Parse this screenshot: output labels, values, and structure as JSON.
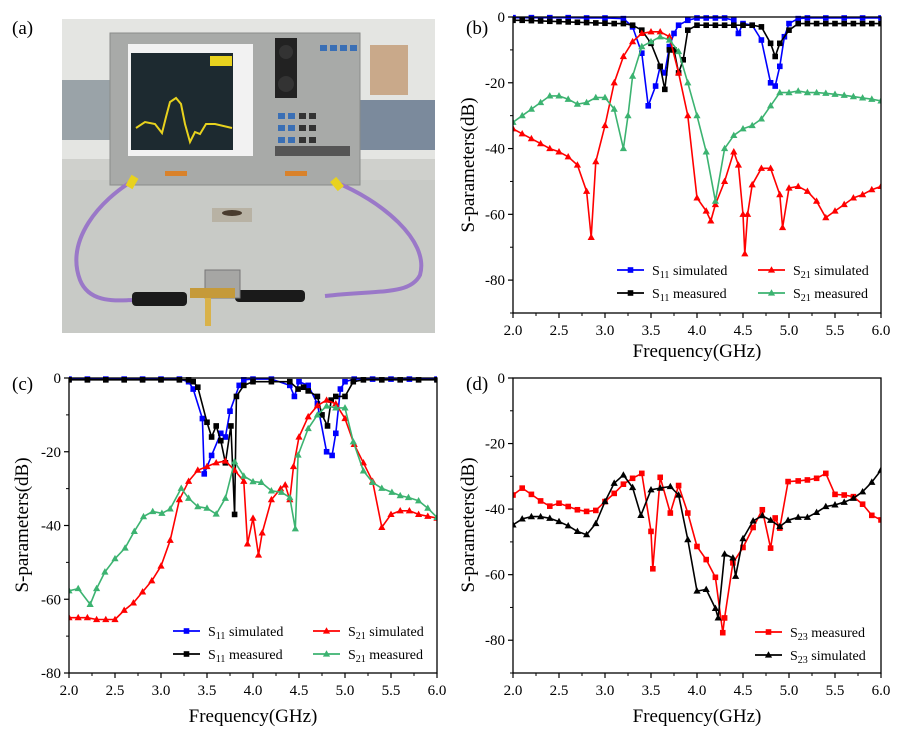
{
  "figure": {
    "panel_labels": [
      "(a)",
      "(b)",
      "(c)",
      "(d)"
    ]
  },
  "chart_data": [
    {
      "panel": "(b)",
      "type": "line",
      "xlabel": "Frequency(GHz)",
      "ylabel": "S-parameters(dB)",
      "xlim": [
        2.0,
        6.0
      ],
      "ylim": [
        -90,
        0
      ],
      "xticks": [
        "2.0",
        "2.5",
        "3.0",
        "3.5",
        "4.0",
        "4.5",
        "5.0",
        "5.5",
        "6.0"
      ],
      "yticks": [
        0,
        -20,
        -40,
        -60,
        -80
      ],
      "grid": false,
      "legend": "bottom-right",
      "series": [
        {
          "name": "S11 simulated",
          "color": "#0000ff",
          "marker": "square",
          "x": [
            2.0,
            2.2,
            2.4,
            2.6,
            2.8,
            3.0,
            3.2,
            3.3,
            3.4,
            3.47,
            3.55,
            3.6,
            3.65,
            3.7,
            3.75,
            3.8,
            3.9,
            4.0,
            4.1,
            4.2,
            4.3,
            4.4,
            4.45,
            4.5,
            4.6,
            4.7,
            4.8,
            4.85,
            4.9,
            4.95,
            5.0,
            5.1,
            5.2,
            5.4,
            5.6,
            5.8,
            6.0
          ],
          "y": [
            -0.2,
            -0.2,
            -0.2,
            -0.2,
            -0.3,
            -0.3,
            -0.5,
            -3,
            -11,
            -27,
            -21,
            -15,
            -17,
            -9,
            -5,
            -2.5,
            -1,
            -0.3,
            -0.3,
            -0.3,
            -0.3,
            -1,
            -5,
            -2,
            -2.5,
            -7,
            -20,
            -21,
            -15,
            -6,
            -2,
            -0.5,
            -0.3,
            -0.3,
            -0.3,
            -0.3,
            -0.3
          ]
        },
        {
          "name": "S11 measured",
          "color": "#000000",
          "marker": "square",
          "x": [
            2.0,
            2.1,
            2.2,
            2.3,
            2.4,
            2.5,
            2.6,
            2.7,
            2.8,
            2.9,
            3.0,
            3.1,
            3.2,
            3.3,
            3.4,
            3.5,
            3.6,
            3.65,
            3.7,
            3.75,
            3.8,
            3.85,
            3.9,
            4.0,
            4.1,
            4.2,
            4.3,
            4.4,
            4.5,
            4.6,
            4.7,
            4.8,
            4.85,
            4.9,
            5.0,
            5.1,
            5.2,
            5.3,
            5.4,
            5.5,
            5.6,
            5.7,
            5.8,
            5.9,
            6.0
          ],
          "y": [
            -1,
            -1,
            -1.1,
            -1.2,
            -1.3,
            -1.4,
            -1.5,
            -1.6,
            -1.7,
            -1.8,
            -1.9,
            -2,
            -2,
            -2.5,
            -4,
            -8,
            -15,
            -22,
            -10,
            -10,
            -17,
            -13,
            -4,
            -2.5,
            -2.5,
            -2.5,
            -2.5,
            -2.5,
            -2.5,
            -2.5,
            -3,
            -8,
            -12,
            -8,
            -4,
            -2,
            -2,
            -2,
            -2,
            -2,
            -2,
            -2,
            -2,
            -2,
            -2
          ]
        },
        {
          "name": "S21 simulated",
          "color": "#ff0000",
          "marker": "triangle",
          "x": [
            2.0,
            2.1,
            2.2,
            2.3,
            2.4,
            2.5,
            2.6,
            2.7,
            2.8,
            2.85,
            2.9,
            3.0,
            3.1,
            3.2,
            3.3,
            3.4,
            3.5,
            3.6,
            3.7,
            3.8,
            3.9,
            4.0,
            4.1,
            4.15,
            4.2,
            4.3,
            4.4,
            4.45,
            4.5,
            4.52,
            4.55,
            4.6,
            4.7,
            4.8,
            4.9,
            4.93,
            5.0,
            5.1,
            5.2,
            5.3,
            5.4,
            5.5,
            5.6,
            5.7,
            5.8,
            5.9,
            6.0
          ],
          "y": [
            -34,
            -35.5,
            -37,
            -38.5,
            -40,
            -41,
            -42.5,
            -45,
            -53,
            -67,
            -44,
            -33,
            -20,
            -12,
            -7.5,
            -5,
            -4.5,
            -4.5,
            -6,
            -17,
            -30,
            -55,
            -59,
            -62,
            -57,
            -50,
            -41,
            -45,
            -60,
            -72,
            -60,
            -51,
            -46,
            -46,
            -54,
            -64,
            -52,
            -51.5,
            -53,
            -56,
            -61,
            -59,
            -57,
            -55,
            -54,
            -52.5,
            -51.5
          ]
        },
        {
          "name": "S21 measured",
          "color": "#3cb371",
          "marker": "triangle",
          "x": [
            2.0,
            2.1,
            2.2,
            2.3,
            2.4,
            2.5,
            2.6,
            2.7,
            2.8,
            2.9,
            3.0,
            3.1,
            3.2,
            3.25,
            3.3,
            3.4,
            3.5,
            3.6,
            3.7,
            3.8,
            3.9,
            4.0,
            4.1,
            4.2,
            4.3,
            4.4,
            4.5,
            4.6,
            4.7,
            4.8,
            4.9,
            5.0,
            5.1,
            5.2,
            5.3,
            5.4,
            5.5,
            5.6,
            5.7,
            5.8,
            5.9,
            6.0
          ],
          "y": [
            -32,
            -30,
            -28,
            -26,
            -24,
            -24,
            -25,
            -26.5,
            -26,
            -24.5,
            -24.5,
            -28,
            -40,
            -30,
            -18,
            -9,
            -7.5,
            -6,
            -7,
            -10.5,
            -20,
            -30,
            -41,
            -56,
            -40,
            -36,
            -34,
            -33,
            -31,
            -27,
            -23,
            -23,
            -22.5,
            -23,
            -23,
            -23.2,
            -23.5,
            -23.8,
            -24.2,
            -24.6,
            -25,
            -25.5
          ]
        }
      ]
    },
    {
      "panel": "(c)",
      "type": "line",
      "xlabel": "Frequency(GHz)",
      "ylabel": "S-parameters(dB)",
      "xlim": [
        2.0,
        6.0
      ],
      "ylim": [
        -80,
        0
      ],
      "xticks": [
        "2.0",
        "2.5",
        "3.0",
        "3.5",
        "4.0",
        "4.5",
        "5.0",
        "5.5",
        "6.0"
      ],
      "yticks": [
        0,
        -20,
        -40,
        -60,
        -80
      ],
      "grid": false,
      "legend": "bottom-right",
      "series": [
        {
          "name": "S11 simulated",
          "color": "#0000ff",
          "marker": "square",
          "x": [
            2.0,
            2.2,
            2.4,
            2.6,
            2.8,
            3.0,
            3.2,
            3.3,
            3.35,
            3.45,
            3.47,
            3.55,
            3.65,
            3.7,
            3.75,
            3.85,
            3.9,
            4.0,
            4.2,
            4.4,
            4.45,
            4.5,
            4.6,
            4.7,
            4.8,
            4.86,
            4.9,
            4.95,
            5.0,
            5.1,
            5.3,
            5.5,
            5.7,
            6.0
          ],
          "y": [
            -0.3,
            -0.3,
            -0.3,
            -0.3,
            -0.3,
            -0.3,
            -0.3,
            -1,
            -3,
            -11,
            -26,
            -21,
            -15,
            -16,
            -9,
            -2,
            -0.5,
            -0.3,
            -0.3,
            -2,
            -5,
            -1,
            -2,
            -7,
            -20,
            -21,
            -15,
            -3,
            -1,
            -0.3,
            -0.3,
            -0.3,
            -0.3,
            -0.3
          ]
        },
        {
          "name": "S11 measured",
          "color": "#000000",
          "marker": "square",
          "x": [
            2.0,
            2.2,
            2.4,
            2.6,
            2.8,
            3.0,
            3.2,
            3.3,
            3.35,
            3.4,
            3.5,
            3.55,
            3.6,
            3.65,
            3.7,
            3.76,
            3.8,
            3.82,
            3.9,
            4.0,
            4.2,
            4.4,
            4.49,
            4.55,
            4.6,
            4.7,
            4.75,
            4.81,
            4.85,
            4.9,
            5.0,
            5.09,
            5.2,
            5.4,
            5.6,
            5.8,
            6.0
          ],
          "y": [
            -0.5,
            -0.5,
            -0.5,
            -0.5,
            -0.5,
            -0.5,
            -0.5,
            -0.5,
            -1,
            -2.5,
            -12,
            -16,
            -13,
            -17,
            -23,
            -13,
            -37,
            -5,
            -2,
            -1,
            -1,
            -1,
            -3,
            -2.5,
            -3.5,
            -5,
            -10,
            -13,
            -6,
            -5,
            -5,
            -1,
            -0.5,
            -0.5,
            -0.5,
            -0.5,
            -0.5
          ]
        },
        {
          "name": "S21 simulated",
          "color": "#ff0000",
          "marker": "triangle",
          "x": [
            2.0,
            2.1,
            2.2,
            2.3,
            2.4,
            2.5,
            2.6,
            2.7,
            2.8,
            2.9,
            3.0,
            3.1,
            3.2,
            3.3,
            3.4,
            3.5,
            3.6,
            3.7,
            3.8,
            3.9,
            3.94,
            4.0,
            4.06,
            4.1,
            4.2,
            4.3,
            4.35,
            4.4,
            4.44,
            4.5,
            4.6,
            4.7,
            4.8,
            4.9,
            5.0,
            5.1,
            5.2,
            5.3,
            5.4,
            5.5,
            5.6,
            5.7,
            5.8,
            5.9,
            6.0
          ],
          "y": [
            -65,
            -65,
            -65,
            -65.5,
            -65.5,
            -65.5,
            -63,
            -61,
            -58,
            -55,
            -51,
            -44,
            -33,
            -28,
            -25,
            -24,
            -23,
            -22.5,
            -25,
            -28,
            -45,
            -38,
            -48,
            -42,
            -33,
            -30,
            -29,
            -33,
            -24,
            -16,
            -10.5,
            -7.5,
            -6,
            -7,
            -11,
            -18,
            -23,
            -28,
            -40.5,
            -37,
            -36,
            -36,
            -37,
            -37.5,
            -38
          ]
        },
        {
          "name": "S21 measured",
          "color": "#3cb371",
          "marker": "triangle",
          "x": [
            2.0,
            2.1,
            2.23,
            2.3,
            2.39,
            2.5,
            2.61,
            2.71,
            2.81,
            2.91,
            3.01,
            3.1,
            3.22,
            3.3,
            3.4,
            3.5,
            3.6,
            3.7,
            3.8,
            3.9,
            4.0,
            4.09,
            4.2,
            4.31,
            4.4,
            4.46,
            4.49,
            4.6,
            4.7,
            4.8,
            4.9,
            5.0,
            5.09,
            5.2,
            5.3,
            5.4,
            5.51,
            5.6,
            5.69,
            5.8,
            5.9,
            6.0
          ],
          "y": [
            -57.7,
            -57.1,
            -61.4,
            -57.1,
            -52.6,
            -49,
            -46.1,
            -41.6,
            -37.6,
            -36.2,
            -36.7,
            -35.5,
            -29.9,
            -32.6,
            -34.9,
            -35.3,
            -36.9,
            -32.6,
            -22.7,
            -26.6,
            -28.1,
            -28.3,
            -30.6,
            -31,
            -32.4,
            -40.9,
            -20.9,
            -13.7,
            -10,
            -7.6,
            -8.1,
            -8.1,
            -17.3,
            -25.2,
            -28.3,
            -29.9,
            -31,
            -31.9,
            -32.4,
            -33.3,
            -35.3,
            -37.8
          ]
        }
      ]
    },
    {
      "panel": "(d)",
      "type": "line",
      "xlabel": "Frequency(GHz)",
      "ylabel": "S-parameters(dB)",
      "xlim": [
        2.0,
        6.0
      ],
      "ylim": [
        -90,
        0
      ],
      "xticks": [
        "2.0",
        "2.5",
        "3.0",
        "3.5",
        "4.0",
        "4.5",
        "5.0",
        "5.5",
        "6.0"
      ],
      "yticks": [
        0,
        -20,
        -40,
        -60,
        -80
      ],
      "grid": false,
      "legend": "bottom-right",
      "series": [
        {
          "name": "S23 measured",
          "color": "#ff0000",
          "marker": "square",
          "x": [
            2.0,
            2.1,
            2.2,
            2.3,
            2.4,
            2.5,
            2.6,
            2.7,
            2.8,
            2.9,
            3.0,
            3.1,
            3.2,
            3.3,
            3.4,
            3.5,
            3.52,
            3.6,
            3.71,
            3.8,
            3.9,
            4.0,
            4.1,
            4.2,
            4.28,
            4.3,
            4.39,
            4.5,
            4.61,
            4.71,
            4.8,
            4.85,
            4.9,
            4.99,
            5.1,
            5.2,
            5.3,
            5.4,
            5.5,
            5.6,
            5.7,
            5.8,
            5.9,
            6.0
          ],
          "y": [
            -35.7,
            -33.6,
            -35.5,
            -37.5,
            -39.1,
            -38.2,
            -39.2,
            -40.2,
            -40.7,
            -40.4,
            -37.7,
            -35.2,
            -32.4,
            -30.6,
            -29.1,
            -46.8,
            -58.2,
            -30.3,
            -41.2,
            -32.8,
            -41.2,
            -51.4,
            -55.4,
            -60.8,
            -77.7,
            -73.2,
            -56.4,
            -51.7,
            -45.6,
            -40.2,
            -51.9,
            -42.7,
            -45.8,
            -31.6,
            -31.4,
            -31.1,
            -30.6,
            -29.1,
            -35.5,
            -35.7,
            -36.2,
            -38.5,
            -41.9,
            -43.3
          ]
        },
        {
          "name": "S23 simulated",
          "color": "#000000",
          "marker": "triangle",
          "x": [
            2.0,
            2.1,
            2.2,
            2.3,
            2.4,
            2.5,
            2.6,
            2.7,
            2.8,
            2.9,
            3.0,
            3.1,
            3.2,
            3.3,
            3.39,
            3.5,
            3.6,
            3.71,
            3.8,
            3.9,
            4.0,
            4.1,
            4.2,
            4.23,
            4.3,
            4.39,
            4.42,
            4.5,
            4.61,
            4.71,
            4.8,
            4.9,
            4.99,
            5.1,
            5.2,
            5.3,
            5.4,
            5.5,
            5.6,
            5.7,
            5.8,
            5.9,
            6.0
          ],
          "y": [
            -44.8,
            -43,
            -42.3,
            -42.3,
            -42.8,
            -43.8,
            -45.1,
            -46.8,
            -47.8,
            -44.4,
            -37.7,
            -32.1,
            -29.6,
            -33.4,
            -41.9,
            -34.1,
            -33.6,
            -33.1,
            -35.7,
            -49.3,
            -65,
            -64.5,
            -70.3,
            -73.2,
            -53.7,
            -54.9,
            -60.5,
            -49,
            -43.6,
            -42,
            -43.4,
            -45.3,
            -43.4,
            -42.5,
            -42.5,
            -41,
            -39.2,
            -38.7,
            -37.9,
            -36.7,
            -34.7,
            -31.8,
            -28.1
          ]
        }
      ]
    }
  ]
}
